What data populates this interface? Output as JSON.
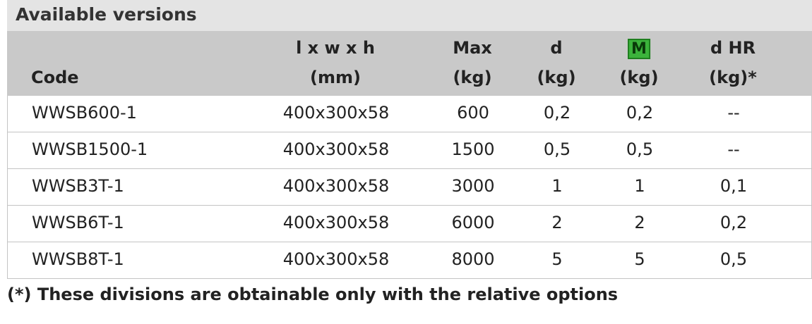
{
  "title": "Available versions",
  "table": {
    "columns": [
      {
        "lines": [
          "Code"
        ]
      },
      {
        "lines": [
          "l x w x h",
          "(mm)"
        ]
      },
      {
        "lines": [
          "Max",
          "(kg)"
        ]
      },
      {
        "lines": [
          "d",
          "(kg)"
        ]
      },
      {
        "lines": [
          "M",
          "(kg)"
        ]
      },
      {
        "lines": [
          "d HR",
          "(kg)*"
        ]
      }
    ],
    "rows": [
      [
        "WWSB600-1",
        "400x300x58",
        "600",
        "0,2",
        "0,2",
        "--"
      ],
      [
        "WWSB1500-1",
        "400x300x58",
        "1500",
        "0,5",
        "0,5",
        "--"
      ],
      [
        "WWSB3T-1",
        "400x300x58",
        "3000",
        "1",
        "1",
        "0,1"
      ],
      [
        "WWSB6T-1",
        "400x300x58",
        "6000",
        "2",
        "2",
        "0,2"
      ],
      [
        "WWSB8T-1",
        "400x300x58",
        "8000",
        "5",
        "5",
        "0,5"
      ]
    ]
  },
  "footnote": "(*) These divisions are obtainable only with the relative options"
}
